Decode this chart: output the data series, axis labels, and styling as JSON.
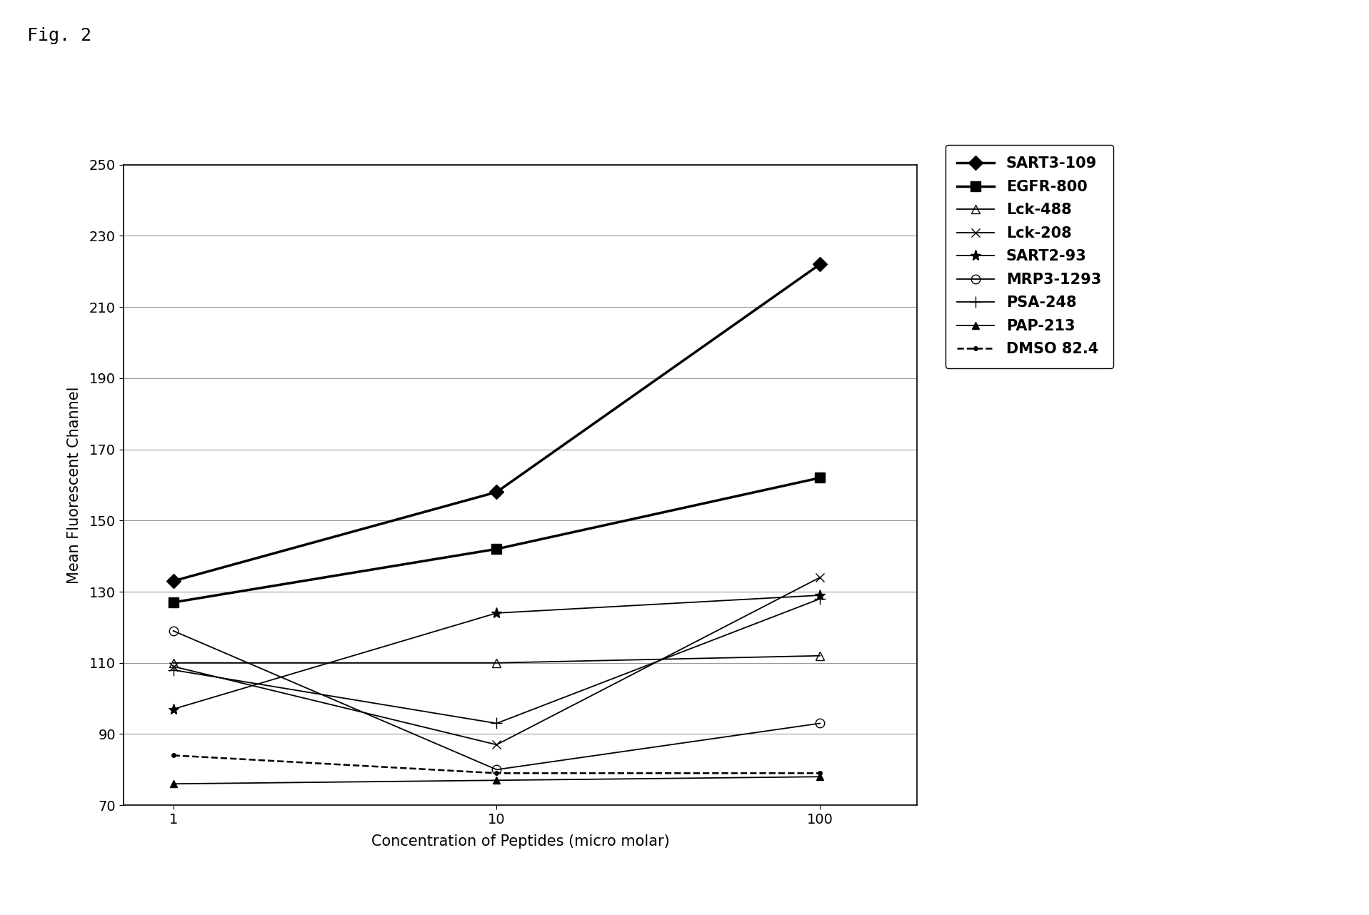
{
  "title": "Fig. 2",
  "xlabel": "Concentration of Peptides (micro molar)",
  "ylabel": "Mean Fluorescent Channel",
  "x_values": [
    1,
    10,
    100
  ],
  "ylim": [
    70,
    250
  ],
  "yticks": [
    70,
    90,
    110,
    130,
    150,
    170,
    190,
    210,
    230,
    250
  ],
  "series": [
    {
      "label": "SART3-109",
      "values": [
        133,
        158,
        222
      ],
      "linewidth": 2.5,
      "linestyle": "-",
      "marker": "D",
      "markersize": 10,
      "markerfacecolor": "#000000",
      "zorder": 10
    },
    {
      "label": "EGFR-800",
      "values": [
        127,
        142,
        162
      ],
      "linewidth": 2.5,
      "linestyle": "-",
      "marker": "s",
      "markersize": 10,
      "markerfacecolor": "#000000",
      "zorder": 9
    },
    {
      "label": "Lck-488",
      "values": [
        110,
        110,
        112
      ],
      "linewidth": 1.3,
      "linestyle": "-",
      "marker": "^",
      "markersize": 9,
      "markerfacecolor": "none",
      "zorder": 5
    },
    {
      "label": "Lck-208",
      "values": [
        109,
        87,
        134
      ],
      "linewidth": 1.3,
      "linestyle": "-",
      "marker": "x",
      "markersize": 9,
      "markerfacecolor": "#000000",
      "zorder": 5
    },
    {
      "label": "SART2-93",
      "values": [
        97,
        124,
        129
      ],
      "linewidth": 1.3,
      "linestyle": "-",
      "marker": "*",
      "markersize": 11,
      "markerfacecolor": "#000000",
      "zorder": 5
    },
    {
      "label": "MRP3-1293",
      "values": [
        119,
        80,
        93
      ],
      "linewidth": 1.3,
      "linestyle": "-",
      "marker": "o",
      "markersize": 9,
      "markerfacecolor": "none",
      "zorder": 5
    },
    {
      "label": "PSA-248",
      "values": [
        108,
        93,
        128
      ],
      "linewidth": 1.3,
      "linestyle": "-",
      "marker": "+",
      "markersize": 11,
      "markerfacecolor": "#000000",
      "zorder": 5
    },
    {
      "label": "PAP-213",
      "values": [
        76,
        77,
        78
      ],
      "linewidth": 1.3,
      "linestyle": "-",
      "marker": "^",
      "markersize": 7,
      "markerfacecolor": "#000000",
      "zorder": 4
    },
    {
      "label": "DMSO 82.4",
      "values": [
        84,
        79,
        79
      ],
      "linewidth": 1.8,
      "linestyle": "--",
      "marker": ".",
      "markersize": 8,
      "markerfacecolor": "#000000",
      "zorder": 6
    }
  ],
  "background_color": "#ffffff",
  "grid_color": "#999999",
  "title_fontsize": 18,
  "axis_label_fontsize": 15,
  "tick_fontsize": 14,
  "legend_fontsize": 15
}
